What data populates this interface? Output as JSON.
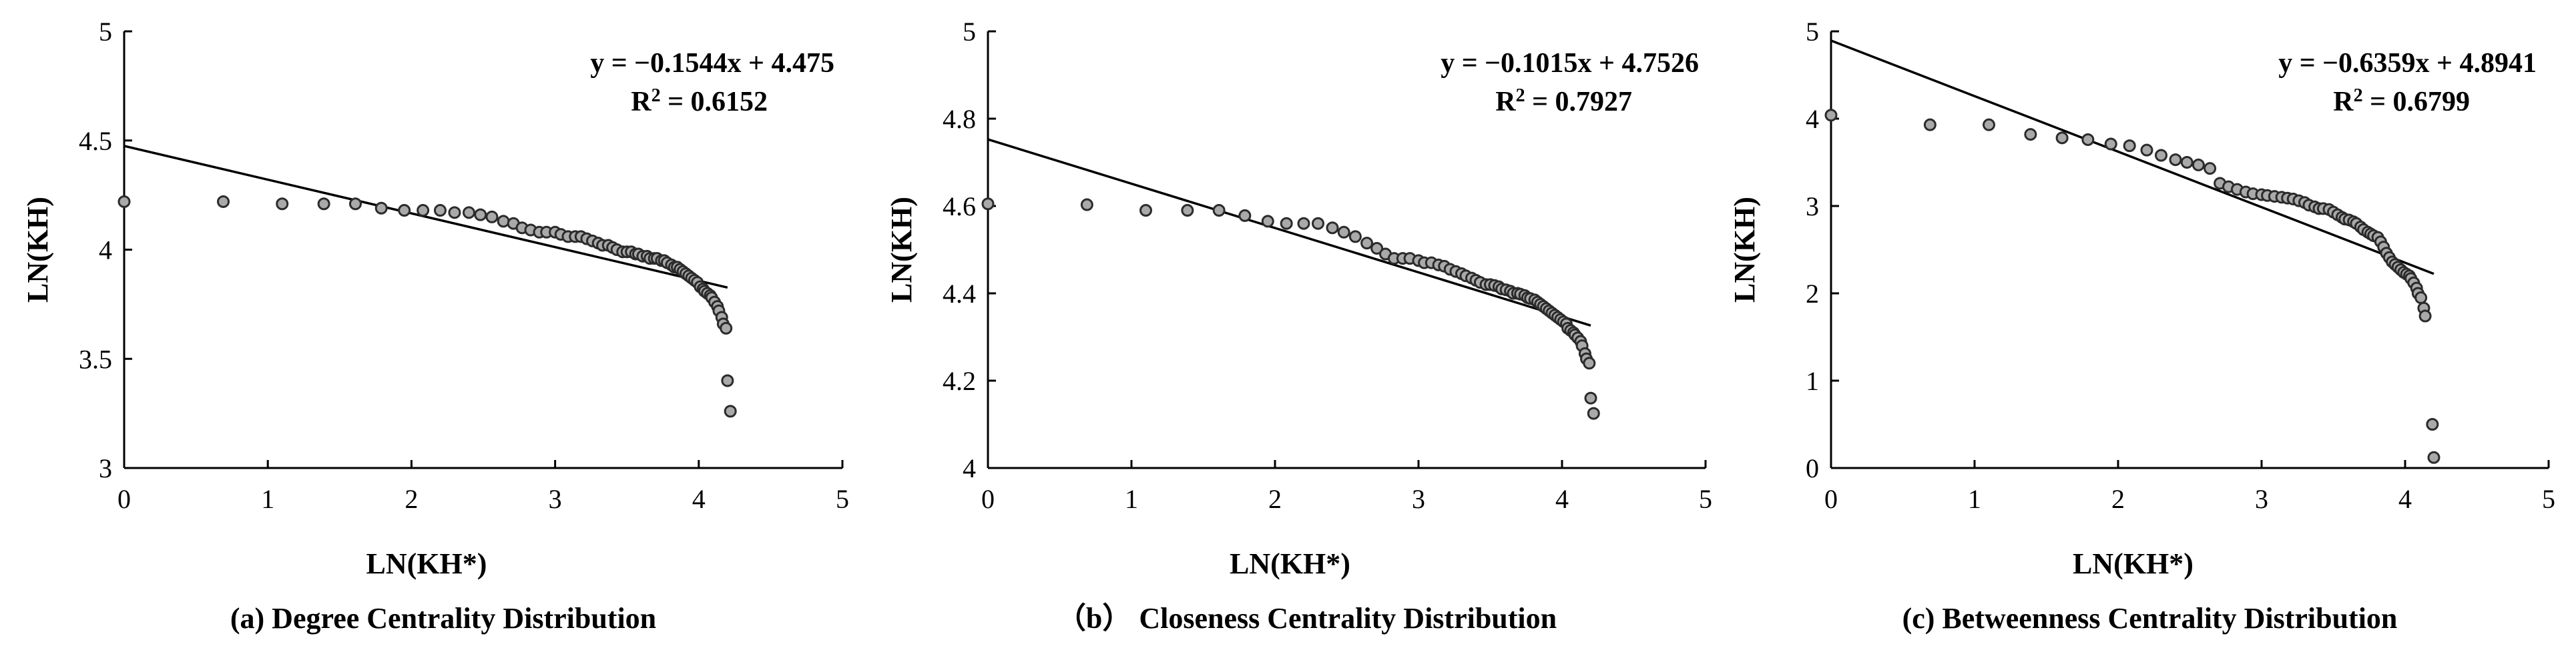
{
  "chart_data": [
    {
      "type": "scatter",
      "caption": "(a) Degree Centrality Distribution",
      "xlabel": "LN(KH*)",
      "ylabel": "LN(KH)",
      "xlim": [
        0,
        5
      ],
      "ylim": [
        3,
        5
      ],
      "xticks": [
        "0",
        "1",
        "2",
        "3",
        "4",
        "5"
      ],
      "yticks": [
        "3",
        "3.5",
        "4",
        "4.5",
        "5"
      ],
      "grid": false,
      "trendline": {
        "slope": -0.1544,
        "intercept": 4.475,
        "x_range": [
          0,
          4.2
        ]
      },
      "equation_label": "y = −0.1544x + 4.475",
      "r2_value": "0.6152",
      "points": [
        [
          0,
          4.22
        ],
        [
          0.69,
          4.22
        ],
        [
          1.1,
          4.21
        ],
        [
          1.39,
          4.21
        ],
        [
          1.61,
          4.21
        ],
        [
          1.79,
          4.19
        ],
        [
          1.95,
          4.18
        ],
        [
          2.08,
          4.18
        ],
        [
          2.2,
          4.18
        ],
        [
          2.3,
          4.17
        ],
        [
          2.4,
          4.17
        ],
        [
          2.48,
          4.16
        ],
        [
          2.56,
          4.15
        ],
        [
          2.64,
          4.13
        ],
        [
          2.71,
          4.12
        ],
        [
          2.77,
          4.1
        ],
        [
          2.83,
          4.09
        ],
        [
          2.89,
          4.08
        ],
        [
          2.94,
          4.08
        ],
        [
          3.0,
          4.08
        ],
        [
          3.04,
          4.07
        ],
        [
          3.09,
          4.06
        ],
        [
          3.14,
          4.06
        ],
        [
          3.18,
          4.06
        ],
        [
          3.22,
          4.05
        ],
        [
          3.26,
          4.04
        ],
        [
          3.3,
          4.03
        ],
        [
          3.33,
          4.02
        ],
        [
          3.37,
          4.02
        ],
        [
          3.4,
          4.01
        ],
        [
          3.43,
          4.0
        ],
        [
          3.47,
          3.99
        ],
        [
          3.5,
          3.99
        ],
        [
          3.53,
          3.99
        ],
        [
          3.56,
          3.98
        ],
        [
          3.58,
          3.98
        ],
        [
          3.61,
          3.97
        ],
        [
          3.64,
          3.97
        ],
        [
          3.66,
          3.96
        ],
        [
          3.69,
          3.96
        ],
        [
          3.71,
          3.96
        ],
        [
          3.74,
          3.95
        ],
        [
          3.76,
          3.95
        ],
        [
          3.78,
          3.94
        ],
        [
          3.81,
          3.93
        ],
        [
          3.83,
          3.92
        ],
        [
          3.85,
          3.92
        ],
        [
          3.87,
          3.91
        ],
        [
          3.89,
          3.9
        ],
        [
          3.91,
          3.89
        ],
        [
          3.93,
          3.88
        ],
        [
          3.95,
          3.87
        ],
        [
          3.97,
          3.86
        ],
        [
          3.99,
          3.85
        ],
        [
          4.01,
          3.83
        ],
        [
          4.03,
          3.82
        ],
        [
          4.04,
          3.81
        ],
        [
          4.06,
          3.8
        ],
        [
          4.08,
          3.79
        ],
        [
          4.09,
          3.78
        ],
        [
          4.11,
          3.76
        ],
        [
          4.13,
          3.74
        ],
        [
          4.14,
          3.72
        ],
        [
          4.16,
          3.69
        ],
        [
          4.17,
          3.66
        ],
        [
          4.19,
          3.64
        ],
        [
          4.2,
          3.4
        ],
        [
          4.22,
          3.26
        ]
      ]
    },
    {
      "type": "scatter",
      "caption": "（b） Closeness Centrality Distribution",
      "xlabel": "LN(KH*)",
      "ylabel": "LN(KH)",
      "xlim": [
        0,
        5
      ],
      "ylim": [
        4,
        5
      ],
      "xticks": [
        "0",
        "1",
        "2",
        "3",
        "4",
        "5"
      ],
      "yticks": [
        "4",
        "4.2",
        "4.4",
        "4.6",
        "4.8",
        "5"
      ],
      "grid": false,
      "trendline": {
        "slope": -0.1015,
        "intercept": 4.7526,
        "x_range": [
          0,
          4.2
        ]
      },
      "equation_label": "y = −0.1015x + 4.7526",
      "r2_value": "0.7927",
      "points": [
        [
          0,
          4.605
        ],
        [
          0.69,
          4.603
        ],
        [
          1.1,
          4.59
        ],
        [
          1.39,
          4.59
        ],
        [
          1.61,
          4.59
        ],
        [
          1.79,
          4.578
        ],
        [
          1.95,
          4.565
        ],
        [
          2.08,
          4.56
        ],
        [
          2.2,
          4.56
        ],
        [
          2.3,
          4.56
        ],
        [
          2.4,
          4.55
        ],
        [
          2.48,
          4.54
        ],
        [
          2.56,
          4.53
        ],
        [
          2.64,
          4.515
        ],
        [
          2.71,
          4.503
        ],
        [
          2.77,
          4.49
        ],
        [
          2.83,
          4.48
        ],
        [
          2.89,
          4.48
        ],
        [
          2.94,
          4.48
        ],
        [
          3.0,
          4.475
        ],
        [
          3.04,
          4.47
        ],
        [
          3.09,
          4.47
        ],
        [
          3.14,
          4.465
        ],
        [
          3.18,
          4.462
        ],
        [
          3.22,
          4.455
        ],
        [
          3.26,
          4.45
        ],
        [
          3.3,
          4.445
        ],
        [
          3.33,
          4.44
        ],
        [
          3.37,
          4.435
        ],
        [
          3.4,
          4.43
        ],
        [
          3.43,
          4.425
        ],
        [
          3.47,
          4.42
        ],
        [
          3.5,
          4.42
        ],
        [
          3.53,
          4.418
        ],
        [
          3.56,
          4.415
        ],
        [
          3.58,
          4.41
        ],
        [
          3.61,
          4.408
        ],
        [
          3.64,
          4.405
        ],
        [
          3.66,
          4.4
        ],
        [
          3.69,
          4.4
        ],
        [
          3.71,
          4.398
        ],
        [
          3.74,
          4.395
        ],
        [
          3.76,
          4.39
        ],
        [
          3.78,
          4.388
        ],
        [
          3.81,
          4.385
        ],
        [
          3.83,
          4.38
        ],
        [
          3.85,
          4.375
        ],
        [
          3.87,
          4.37
        ],
        [
          3.89,
          4.365
        ],
        [
          3.91,
          4.36
        ],
        [
          3.93,
          4.355
        ],
        [
          3.95,
          4.35
        ],
        [
          3.97,
          4.345
        ],
        [
          3.99,
          4.34
        ],
        [
          4.01,
          4.335
        ],
        [
          4.03,
          4.33
        ],
        [
          4.04,
          4.32
        ],
        [
          4.06,
          4.315
        ],
        [
          4.08,
          4.31
        ],
        [
          4.09,
          4.305
        ],
        [
          4.11,
          4.298
        ],
        [
          4.13,
          4.29
        ],
        [
          4.14,
          4.28
        ],
        [
          4.16,
          4.262
        ],
        [
          4.17,
          4.25
        ],
        [
          4.19,
          4.24
        ],
        [
          4.2,
          4.16
        ],
        [
          4.22,
          4.125
        ]
      ]
    },
    {
      "type": "scatter",
      "caption": "(c) Betweenness Centrality Distribution",
      "xlabel": "LN(KH*)",
      "ylabel": "LN(KH)",
      "xlim": [
        0,
        5
      ],
      "ylim": [
        0,
        5
      ],
      "xticks": [
        "0",
        "1",
        "2",
        "3",
        "4",
        "5"
      ],
      "yticks": [
        "0",
        "1",
        "2",
        "3",
        "4",
        "5"
      ],
      "grid": false,
      "trendline": {
        "slope": -0.6359,
        "intercept": 4.8941,
        "x_range": [
          0,
          4.2
        ]
      },
      "equation_label": "y = −0.6359x + 4.8941",
      "r2_value": "0.6799",
      "points": [
        [
          0,
          4.04
        ],
        [
          0.69,
          3.93
        ],
        [
          1.1,
          3.93
        ],
        [
          1.39,
          3.82
        ],
        [
          1.61,
          3.78
        ],
        [
          1.79,
          3.76
        ],
        [
          1.95,
          3.71
        ],
        [
          2.08,
          3.69
        ],
        [
          2.2,
          3.64
        ],
        [
          2.3,
          3.58
        ],
        [
          2.4,
          3.53
        ],
        [
          2.48,
          3.5
        ],
        [
          2.56,
          3.47
        ],
        [
          2.64,
          3.43
        ],
        [
          2.71,
          3.26
        ],
        [
          2.77,
          3.22
        ],
        [
          2.83,
          3.19
        ],
        [
          2.89,
          3.16
        ],
        [
          2.94,
          3.14
        ],
        [
          3.0,
          3.13
        ],
        [
          3.04,
          3.12
        ],
        [
          3.09,
          3.11
        ],
        [
          3.14,
          3.1
        ],
        [
          3.18,
          3.09
        ],
        [
          3.22,
          3.08
        ],
        [
          3.26,
          3.06
        ],
        [
          3.3,
          3.04
        ],
        [
          3.33,
          3.01
        ],
        [
          3.37,
          2.99
        ],
        [
          3.4,
          2.97
        ],
        [
          3.43,
          2.97
        ],
        [
          3.47,
          2.96
        ],
        [
          3.5,
          2.93
        ],
        [
          3.53,
          2.9
        ],
        [
          3.56,
          2.87
        ],
        [
          3.58,
          2.85
        ],
        [
          3.61,
          2.84
        ],
        [
          3.64,
          2.82
        ],
        [
          3.66,
          2.8
        ],
        [
          3.69,
          2.76
        ],
        [
          3.71,
          2.73
        ],
        [
          3.74,
          2.7
        ],
        [
          3.76,
          2.68
        ],
        [
          3.78,
          2.66
        ],
        [
          3.81,
          2.64
        ],
        [
          3.83,
          2.59
        ],
        [
          3.85,
          2.53
        ],
        [
          3.87,
          2.46
        ],
        [
          3.89,
          2.41
        ],
        [
          3.91,
          2.36
        ],
        [
          3.93,
          2.33
        ],
        [
          3.95,
          2.3
        ],
        [
          3.97,
          2.27
        ],
        [
          3.99,
          2.24
        ],
        [
          4.01,
          2.22
        ],
        [
          4.03,
          2.2
        ],
        [
          4.04,
          2.17
        ],
        [
          4.06,
          2.12
        ],
        [
          4.08,
          2.06
        ],
        [
          4.09,
          2.0
        ],
        [
          4.11,
          1.95
        ],
        [
          4.13,
          1.83
        ],
        [
          4.14,
          1.74
        ],
        [
          4.19,
          0.5
        ],
        [
          4.2,
          0.12
        ]
      ]
    }
  ],
  "colors": {
    "marker_fill": "#a9a9a9",
    "marker_stroke": "#2b2b2b",
    "axis": "#000000",
    "trendline": "#000000"
  }
}
